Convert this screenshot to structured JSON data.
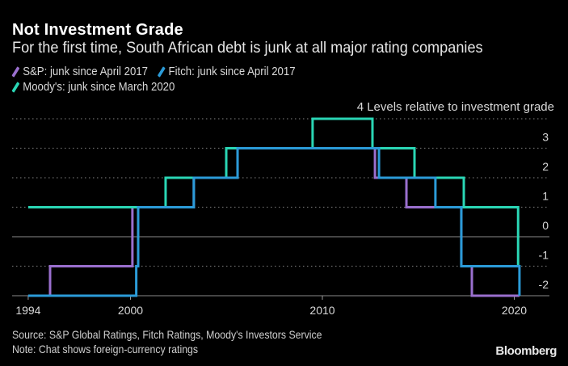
{
  "title": "Not Investment Grade",
  "subtitle": "For the first time, South African debt is junk at all major rating companies",
  "legend": [
    {
      "label": "S&P: junk since April 2017",
      "color": "#9a6fce"
    },
    {
      "label": "Fitch: junk since April 2017",
      "color": "#2b9bd8"
    },
    {
      "label": "Moody's: junk since March 2020",
      "color": "#2ad6b5"
    }
  ],
  "footer": {
    "source": "Source: S&P Global Ratings, Fitch Ratings, Moody's Investors Service",
    "note": "Note: Chat shows foreign-currency ratings"
  },
  "brand": "Bloomberg",
  "chart_data": {
    "type": "line",
    "step": true,
    "title": "Not Investment Grade",
    "subtitle": "For the first time, South African debt is junk at all major rating companies",
    "xlabel": "",
    "ylabel": "Levels relative to investment grade",
    "y_unit_prefix": "4",
    "xlim": [
      1994.67,
      2020.27
    ],
    "ylim": [
      -2,
      4
    ],
    "x_ticks": [
      {
        "value": 1994.67,
        "label": "1994"
      },
      {
        "value": 2000,
        "label": "2000"
      },
      {
        "value": 2010,
        "label": "2010"
      },
      {
        "value": 2020,
        "label": "2020"
      }
    ],
    "y_ticks": [
      {
        "value": 3,
        "label": "3"
      },
      {
        "value": 2,
        "label": "2"
      },
      {
        "value": 1,
        "label": "1"
      },
      {
        "value": 0,
        "label": "0"
      },
      {
        "value": -1,
        "label": "-1"
      },
      {
        "value": -2,
        "label": "-2"
      }
    ],
    "grid": true,
    "legend_position": "top-left",
    "series": [
      {
        "name": "S&P",
        "color": "#9a6fce",
        "points": [
          {
            "x": 1994.67,
            "y": -2
          },
          {
            "x": 1995.81,
            "y": -1
          },
          {
            "x": 2000.1,
            "y": 1
          },
          {
            "x": 2003.3,
            "y": 2
          },
          {
            "x": 2005.58,
            "y": 3
          },
          {
            "x": 2012.74,
            "y": 2
          },
          {
            "x": 2014.38,
            "y": 1
          },
          {
            "x": 2017.24,
            "y": -1
          },
          {
            "x": 2017.79,
            "y": -2
          },
          {
            "x": 2020.27,
            "y": -2
          }
        ]
      },
      {
        "name": "Fitch",
        "color": "#2b9bd8",
        "points": [
          {
            "x": 1994.67,
            "y": -2
          },
          {
            "x": 2000.3,
            "y": -1
          },
          {
            "x": 2000.4,
            "y": 1
          },
          {
            "x": 2003.3,
            "y": 2
          },
          {
            "x": 2005.58,
            "y": 3
          },
          {
            "x": 2012.95,
            "y": 2
          },
          {
            "x": 2015.89,
            "y": 1
          },
          {
            "x": 2017.24,
            "y": -1
          },
          {
            "x": 2020.27,
            "y": -2
          }
        ]
      },
      {
        "name": "Moody's",
        "color": "#2ad6b5",
        "points": [
          {
            "x": 1994.67,
            "y": 1
          },
          {
            "x": 2001.83,
            "y": 2
          },
          {
            "x": 2004.99,
            "y": 3
          },
          {
            "x": 2009.49,
            "y": 4
          },
          {
            "x": 2012.61,
            "y": 3
          },
          {
            "x": 2014.8,
            "y": 2
          },
          {
            "x": 2017.37,
            "y": 1
          },
          {
            "x": 2020.2,
            "y": -1
          },
          {
            "x": 2020.2,
            "y": -1
          }
        ]
      }
    ]
  }
}
